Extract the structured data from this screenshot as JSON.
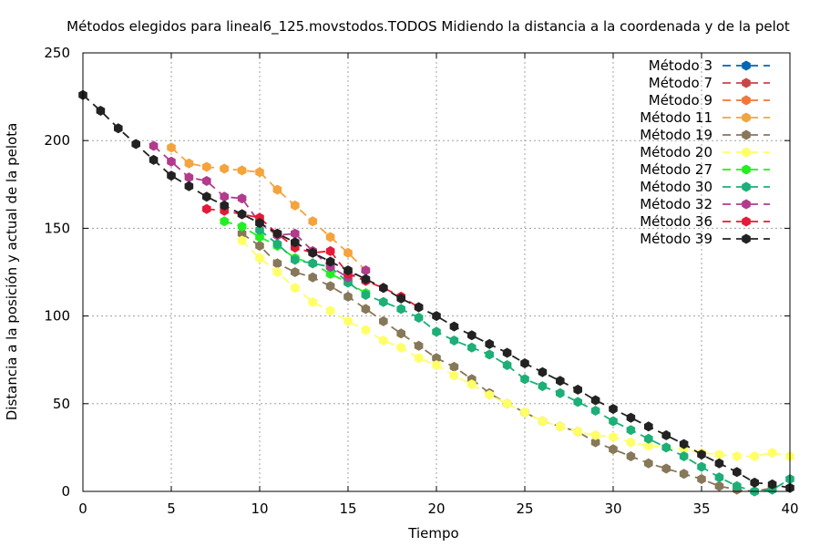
{
  "chart_data": {
    "type": "line",
    "title": "Métodos elegidos para lineal6_125.movstodos.TODOS Midiendo la distancia a la coordenada y de la pelot",
    "xlabel": "Tiempo",
    "ylabel": "Distancia a la posición y actual de la pelota",
    "xlim": [
      0,
      40
    ],
    "ylim": [
      0,
      250
    ],
    "xticks": [
      0,
      5,
      10,
      15,
      20,
      25,
      30,
      35,
      40
    ],
    "yticks": [
      0,
      50,
      100,
      150,
      200,
      250
    ],
    "grid": true,
    "legend_position": "top-right",
    "series": [
      {
        "name": "Método 3",
        "color": "#0066b3",
        "points": []
      },
      {
        "name": "Método 7",
        "color": "#c84646",
        "points": []
      },
      {
        "name": "Método 9",
        "color": "#f0783c",
        "points": []
      },
      {
        "name": "Método 11",
        "color": "#f5a33c",
        "points": [
          [
            5,
            196
          ],
          [
            6,
            187
          ],
          [
            7,
            185
          ],
          [
            8,
            184
          ],
          [
            9,
            183
          ],
          [
            10,
            182
          ],
          [
            11,
            172
          ],
          [
            12,
            163
          ],
          [
            13,
            154
          ],
          [
            14,
            145
          ],
          [
            15,
            136
          ],
          [
            16,
            126
          ]
        ]
      },
      {
        "name": "Método 19",
        "color": "#877859",
        "points": [
          [
            9,
            147
          ],
          [
            10,
            140
          ],
          [
            11,
            130
          ],
          [
            12,
            125
          ],
          [
            13,
            122
          ],
          [
            14,
            117
          ],
          [
            15,
            111
          ],
          [
            16,
            104
          ],
          [
            17,
            97
          ],
          [
            18,
            90
          ],
          [
            19,
            83
          ],
          [
            20,
            76
          ],
          [
            21,
            71
          ],
          [
            22,
            64
          ],
          [
            23,
            56
          ],
          [
            24,
            50
          ],
          [
            25,
            45
          ],
          [
            26,
            40
          ],
          [
            27,
            37
          ],
          [
            28,
            34
          ],
          [
            29,
            28
          ],
          [
            30,
            24
          ],
          [
            31,
            20
          ],
          [
            32,
            16
          ],
          [
            33,
            13
          ],
          [
            34,
            10
          ],
          [
            35,
            7
          ],
          [
            36,
            3
          ],
          [
            37,
            1
          ],
          [
            38,
            0
          ],
          [
            39,
            2
          ]
        ]
      },
      {
        "name": "Método 20",
        "color": "#ffff66",
        "points": [
          [
            9,
            143
          ],
          [
            10,
            133
          ],
          [
            11,
            125
          ],
          [
            12,
            116
          ],
          [
            13,
            108
          ],
          [
            14,
            103
          ],
          [
            15,
            97
          ],
          [
            16,
            92
          ],
          [
            17,
            86
          ],
          [
            18,
            82
          ],
          [
            19,
            76
          ],
          [
            20,
            72
          ],
          [
            21,
            66
          ],
          [
            22,
            61
          ],
          [
            23,
            55
          ],
          [
            24,
            50
          ],
          [
            25,
            45
          ],
          [
            26,
            40
          ],
          [
            27,
            37
          ],
          [
            28,
            34
          ],
          [
            29,
            32
          ],
          [
            30,
            31
          ],
          [
            31,
            28
          ],
          [
            32,
            26
          ],
          [
            33,
            25
          ],
          [
            34,
            24
          ],
          [
            35,
            22
          ],
          [
            36,
            21
          ],
          [
            37,
            20
          ],
          [
            38,
            20
          ],
          [
            39,
            22
          ],
          [
            40,
            20
          ]
        ]
      },
      {
        "name": "Método 27",
        "color": "#22ee22",
        "points": [
          [
            8,
            154
          ],
          [
            9,
            151
          ],
          [
            10,
            145
          ],
          [
            11,
            140
          ],
          [
            12,
            133
          ],
          [
            13,
            130
          ],
          [
            14,
            124
          ],
          [
            15,
            119
          ],
          [
            16,
            113
          ]
        ]
      },
      {
        "name": "Método 30",
        "color": "#1daf78",
        "points": [
          [
            10,
            149
          ],
          [
            11,
            141
          ],
          [
            12,
            132
          ],
          [
            13,
            130
          ],
          [
            14,
            128
          ],
          [
            15,
            119
          ],
          [
            16,
            112
          ],
          [
            17,
            108
          ],
          [
            18,
            104
          ],
          [
            19,
            99
          ],
          [
            20,
            91
          ],
          [
            21,
            86
          ],
          [
            22,
            82
          ],
          [
            23,
            78
          ],
          [
            24,
            72
          ],
          [
            25,
            64
          ],
          [
            26,
            60
          ],
          [
            27,
            56
          ],
          [
            28,
            51
          ],
          [
            29,
            46
          ],
          [
            30,
            40
          ],
          [
            31,
            35
          ],
          [
            32,
            30
          ],
          [
            33,
            25
          ],
          [
            34,
            20
          ],
          [
            35,
            14
          ],
          [
            36,
            8
          ],
          [
            37,
            3
          ],
          [
            38,
            0
          ],
          [
            39,
            1
          ],
          [
            40,
            7
          ]
        ]
      },
      {
        "name": "Método 32",
        "color": "#b23b8c",
        "points": [
          [
            4,
            197
          ],
          [
            5,
            188
          ],
          [
            6,
            179
          ],
          [
            7,
            177
          ],
          [
            8,
            168
          ],
          [
            9,
            167
          ],
          [
            10,
            153
          ],
          [
            11,
            146
          ],
          [
            12,
            147
          ],
          [
            13,
            137
          ],
          [
            14,
            128
          ],
          [
            15,
            122
          ],
          [
            16,
            126
          ]
        ]
      },
      {
        "name": "Método 36",
        "color": "#e31a38",
        "points": [
          [
            7,
            161
          ],
          [
            8,
            160
          ],
          [
            9,
            158
          ],
          [
            10,
            156
          ],
          [
            11,
            147
          ],
          [
            12,
            139
          ],
          [
            13,
            136
          ],
          [
            14,
            137
          ],
          [
            15,
            124
          ],
          [
            16,
            120
          ],
          [
            17,
            116
          ],
          [
            18,
            111
          ],
          [
            19,
            105
          ]
        ]
      },
      {
        "name": "Método 39",
        "color": "#222222",
        "points": [
          [
            0,
            226
          ],
          [
            1,
            217
          ],
          [
            2,
            207
          ],
          [
            3,
            198
          ],
          [
            4,
            189
          ],
          [
            5,
            180
          ],
          [
            6,
            174
          ],
          [
            7,
            168
          ],
          [
            8,
            163
          ],
          [
            9,
            158
          ],
          [
            10,
            153
          ],
          [
            11,
            147
          ],
          [
            12,
            142
          ],
          [
            13,
            136
          ],
          [
            14,
            131
          ],
          [
            15,
            126
          ],
          [
            16,
            121
          ],
          [
            17,
            116
          ],
          [
            18,
            110
          ],
          [
            19,
            105
          ],
          [
            20,
            100
          ],
          [
            21,
            94
          ],
          [
            22,
            89
          ],
          [
            23,
            84
          ],
          [
            24,
            79
          ],
          [
            25,
            73
          ],
          [
            26,
            68
          ],
          [
            27,
            63
          ],
          [
            28,
            58
          ],
          [
            29,
            52
          ],
          [
            30,
            47
          ],
          [
            31,
            42
          ],
          [
            32,
            37
          ],
          [
            33,
            32
          ],
          [
            34,
            27
          ],
          [
            35,
            21
          ],
          [
            36,
            16
          ],
          [
            37,
            11
          ],
          [
            38,
            5
          ],
          [
            39,
            4
          ],
          [
            40,
            2
          ]
        ]
      }
    ]
  }
}
